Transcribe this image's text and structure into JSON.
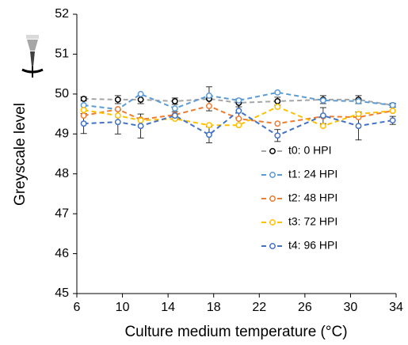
{
  "chart_data": {
    "type": "line",
    "x_label": "Culture medium temperature (°C)",
    "y_label": "Greyscale level",
    "x": [
      6.6,
      9.6,
      11.6,
      14.6,
      17.6,
      20.2,
      23.6,
      27.6,
      30.7,
      33.7
    ],
    "series": [
      {
        "name": "t0: 0 HPI",
        "color": "#a5a5a5",
        "marker_color": "#000000",
        "values": [
          49.88,
          49.86,
          49.86,
          49.82,
          49.88,
          49.78,
          49.82,
          49.86,
          49.86,
          49.72
        ],
        "errors": [
          0.05,
          0.1,
          0.1,
          0.08,
          0.3,
          0.1,
          0.1,
          0.1,
          0.1,
          0.05
        ]
      },
      {
        "name": "t1: 24 HPI",
        "color": "#5b9bd5",
        "values": [
          49.72,
          49.62,
          50.0,
          49.64,
          49.96,
          49.84,
          50.04,
          49.84,
          49.82,
          49.72
        ]
      },
      {
        "name": "t2: 48 HPI",
        "color": "#ed7d31",
        "values": [
          49.46,
          49.62,
          49.36,
          49.48,
          49.7,
          49.38,
          49.26,
          49.44,
          49.42,
          49.58
        ]
      },
      {
        "name": "t3: 72 HPI",
        "color": "#ffc000",
        "values": [
          49.6,
          49.46,
          49.34,
          49.38,
          49.22,
          49.22,
          49.68,
          49.2,
          49.5,
          49.58
        ]
      },
      {
        "name": "t4: 96 HPI",
        "color": "#4472c4",
        "values": [
          49.26,
          49.3,
          49.2,
          49.46,
          48.98,
          49.58,
          48.96,
          49.46,
          49.2,
          49.34
        ],
        "errors": [
          0.25,
          0.3,
          0.3,
          0.1,
          0.2,
          0.2,
          0.15,
          0.2,
          0.35,
          0.1
        ]
      }
    ],
    "xlim": [
      6,
      34
    ],
    "xticks": [
      6,
      10,
      14,
      18,
      22,
      26,
      30,
      34
    ],
    "ylim": [
      45,
      52
    ],
    "yticks": [
      45,
      46,
      47,
      48,
      49,
      50,
      51,
      52
    ],
    "grid": false,
    "legend_loc": "lower right"
  }
}
